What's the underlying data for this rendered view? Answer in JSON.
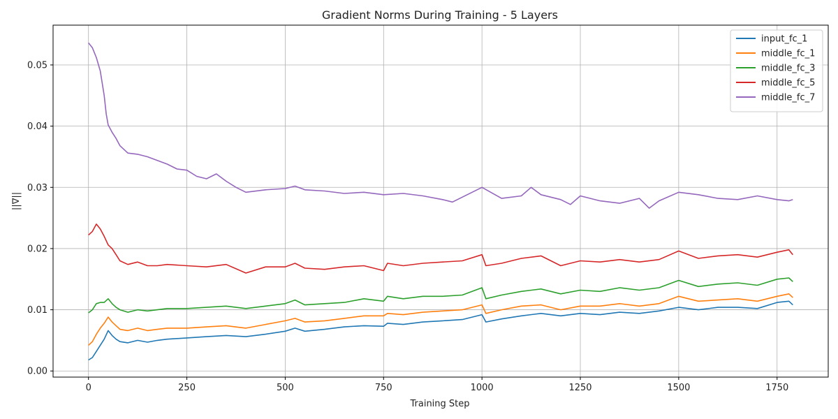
{
  "chart_data": {
    "type": "line",
    "title": "Gradient Norms During Training - 5 Layers",
    "xlabel": "Training Step",
    "ylabel": "||∇||",
    "xlim": [
      -90,
      1880
    ],
    "ylim": [
      -0.001,
      0.0565
    ],
    "xticks": [
      0,
      250,
      500,
      750,
      1000,
      1250,
      1500,
      1750
    ],
    "yticks": [
      0.0,
      0.01,
      0.02,
      0.03,
      0.04,
      0.05
    ],
    "ytick_labels": [
      "0.00",
      "0.01",
      "0.02",
      "0.03",
      "0.04",
      "0.05"
    ],
    "grid": true,
    "legend_position": "top-right",
    "series": [
      {
        "name": "input_fc_1",
        "color": "#1f77b4",
        "x": [
          0,
          10,
          20,
          30,
          40,
          50,
          60,
          70,
          80,
          100,
          125,
          150,
          175,
          200,
          250,
          300,
          350,
          400,
          450,
          500,
          525,
          550,
          600,
          650,
          700,
          750,
          760,
          800,
          850,
          900,
          950,
          1000,
          1010,
          1050,
          1100,
          1150,
          1200,
          1250,
          1300,
          1350,
          1400,
          1450,
          1500,
          1550,
          1600,
          1650,
          1700,
          1750,
          1780,
          1790
        ],
        "y": [
          0.0018,
          0.0022,
          0.0032,
          0.0042,
          0.0052,
          0.0066,
          0.0058,
          0.0052,
          0.0048,
          0.0046,
          0.005,
          0.0047,
          0.005,
          0.0052,
          0.0054,
          0.0056,
          0.0058,
          0.0056,
          0.006,
          0.0065,
          0.007,
          0.0065,
          0.0068,
          0.0072,
          0.0074,
          0.0073,
          0.0078,
          0.0076,
          0.008,
          0.0082,
          0.0084,
          0.0092,
          0.008,
          0.0085,
          0.009,
          0.0094,
          0.009,
          0.0094,
          0.0092,
          0.0096,
          0.0094,
          0.0098,
          0.0104,
          0.01,
          0.0104,
          0.0104,
          0.0102,
          0.0112,
          0.0114,
          0.0108
        ]
      },
      {
        "name": "middle_fc_1",
        "color": "#ff7f0e",
        "x": [
          0,
          10,
          20,
          30,
          40,
          50,
          60,
          70,
          80,
          100,
          125,
          150,
          175,
          200,
          250,
          300,
          350,
          400,
          450,
          500,
          525,
          550,
          600,
          650,
          700,
          750,
          760,
          800,
          850,
          900,
          950,
          1000,
          1010,
          1050,
          1100,
          1150,
          1200,
          1250,
          1300,
          1350,
          1400,
          1450,
          1500,
          1550,
          1600,
          1650,
          1700,
          1750,
          1780,
          1790
        ],
        "y": [
          0.0042,
          0.0048,
          0.006,
          0.007,
          0.0078,
          0.0088,
          0.008,
          0.0074,
          0.0068,
          0.0066,
          0.007,
          0.0066,
          0.0068,
          0.007,
          0.007,
          0.0072,
          0.0074,
          0.007,
          0.0076,
          0.0082,
          0.0086,
          0.008,
          0.0082,
          0.0086,
          0.009,
          0.009,
          0.0094,
          0.0092,
          0.0096,
          0.0098,
          0.01,
          0.0108,
          0.0094,
          0.01,
          0.0106,
          0.0108,
          0.01,
          0.0106,
          0.0106,
          0.011,
          0.0106,
          0.011,
          0.0122,
          0.0114,
          0.0116,
          0.0118,
          0.0114,
          0.0122,
          0.0126,
          0.012
        ]
      },
      {
        "name": "middle_fc_3",
        "color": "#2ca02c",
        "x": [
          0,
          10,
          20,
          30,
          40,
          50,
          60,
          70,
          80,
          100,
          125,
          150,
          175,
          200,
          250,
          300,
          350,
          400,
          450,
          500,
          525,
          550,
          600,
          650,
          700,
          750,
          760,
          800,
          850,
          900,
          950,
          1000,
          1010,
          1050,
          1100,
          1150,
          1200,
          1250,
          1300,
          1350,
          1400,
          1450,
          1500,
          1550,
          1600,
          1650,
          1700,
          1750,
          1780,
          1790
        ],
        "y": [
          0.0095,
          0.01,
          0.011,
          0.0112,
          0.0112,
          0.0118,
          0.011,
          0.0104,
          0.01,
          0.0096,
          0.01,
          0.0098,
          0.01,
          0.0102,
          0.0102,
          0.0104,
          0.0106,
          0.0102,
          0.0106,
          0.011,
          0.0116,
          0.0108,
          0.011,
          0.0112,
          0.0118,
          0.0114,
          0.0122,
          0.0118,
          0.0122,
          0.0122,
          0.0124,
          0.0136,
          0.0118,
          0.0124,
          0.013,
          0.0134,
          0.0126,
          0.0132,
          0.013,
          0.0136,
          0.0132,
          0.0136,
          0.0148,
          0.0138,
          0.0142,
          0.0144,
          0.014,
          0.015,
          0.0152,
          0.0146
        ]
      },
      {
        "name": "middle_fc_5",
        "color": "#d62728",
        "x": [
          0,
          10,
          20,
          30,
          40,
          50,
          60,
          70,
          80,
          100,
          125,
          150,
          175,
          200,
          250,
          300,
          350,
          400,
          450,
          500,
          525,
          550,
          600,
          650,
          700,
          750,
          760,
          800,
          850,
          900,
          950,
          1000,
          1010,
          1050,
          1100,
          1150,
          1200,
          1250,
          1300,
          1350,
          1400,
          1450,
          1500,
          1550,
          1600,
          1650,
          1700,
          1750,
          1780,
          1790
        ],
        "y": [
          0.0222,
          0.0228,
          0.024,
          0.0232,
          0.022,
          0.0206,
          0.02,
          0.019,
          0.018,
          0.0174,
          0.0178,
          0.0172,
          0.0172,
          0.0174,
          0.0172,
          0.017,
          0.0174,
          0.016,
          0.017,
          0.017,
          0.0176,
          0.0168,
          0.0166,
          0.017,
          0.0172,
          0.0164,
          0.0176,
          0.0172,
          0.0176,
          0.0178,
          0.018,
          0.019,
          0.0172,
          0.0176,
          0.0184,
          0.0188,
          0.0172,
          0.018,
          0.0178,
          0.0182,
          0.0178,
          0.0182,
          0.0196,
          0.0184,
          0.0188,
          0.019,
          0.0186,
          0.0194,
          0.0198,
          0.019
        ]
      },
      {
        "name": "middle_fc_7",
        "color": "#9467bd",
        "x": [
          0,
          10,
          20,
          30,
          40,
          45,
          50,
          60,
          70,
          80,
          100,
          125,
          150,
          175,
          200,
          225,
          250,
          275,
          300,
          325,
          350,
          375,
          400,
          450,
          500,
          525,
          550,
          600,
          650,
          700,
          750,
          800,
          850,
          900,
          925,
          950,
          1000,
          1050,
          1100,
          1125,
          1150,
          1200,
          1225,
          1250,
          1300,
          1350,
          1400,
          1425,
          1450,
          1500,
          1550,
          1600,
          1650,
          1700,
          1750,
          1780,
          1790
        ],
        "y": [
          0.0536,
          0.0528,
          0.0512,
          0.049,
          0.045,
          0.042,
          0.0402,
          0.039,
          0.038,
          0.0368,
          0.0356,
          0.0354,
          0.035,
          0.0344,
          0.0338,
          0.033,
          0.0328,
          0.0318,
          0.0314,
          0.0322,
          0.031,
          0.03,
          0.0292,
          0.0296,
          0.0298,
          0.0302,
          0.0296,
          0.0294,
          0.029,
          0.0292,
          0.0288,
          0.029,
          0.0286,
          0.028,
          0.0276,
          0.0284,
          0.03,
          0.0282,
          0.0286,
          0.03,
          0.0288,
          0.028,
          0.0272,
          0.0286,
          0.0278,
          0.0274,
          0.0282,
          0.0266,
          0.0278,
          0.0292,
          0.0288,
          0.0282,
          0.028,
          0.0286,
          0.028,
          0.0278,
          0.028
        ]
      }
    ]
  }
}
